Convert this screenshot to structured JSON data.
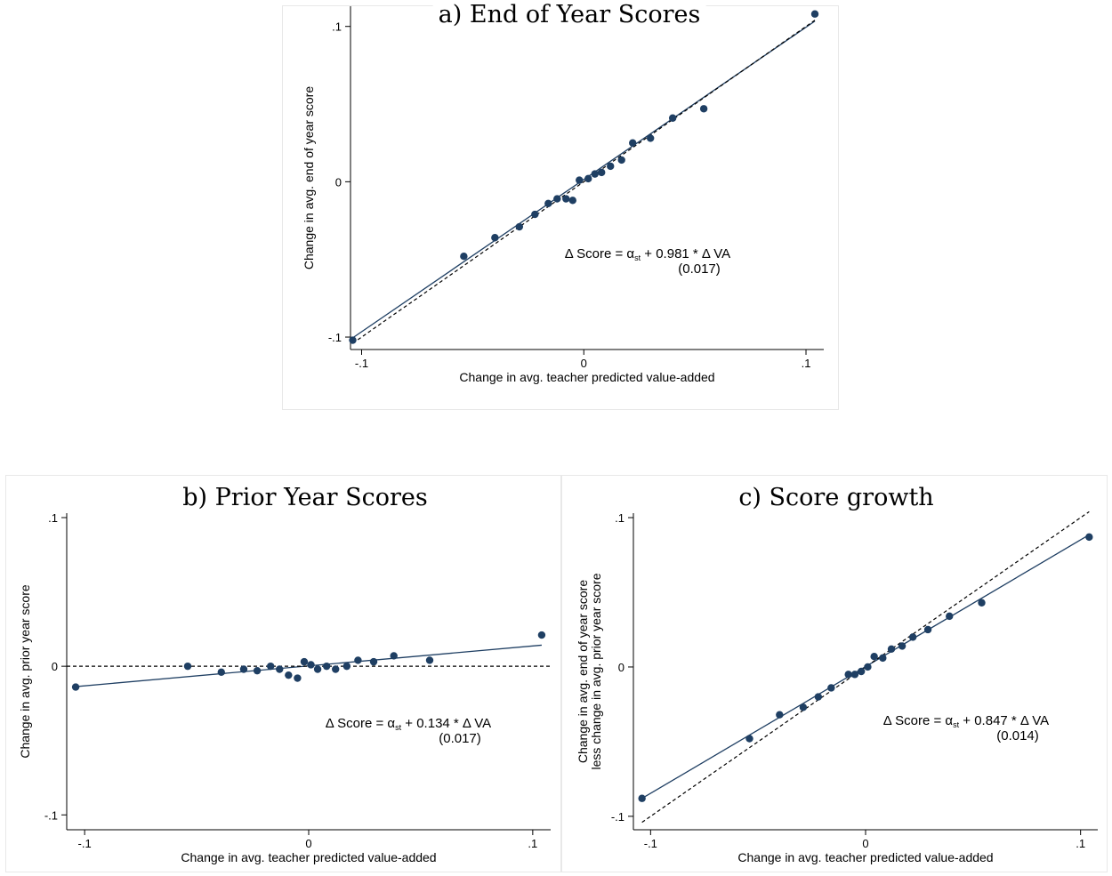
{
  "chart_data": [
    {
      "type": "scatter",
      "title": "a) End of Year Scores",
      "xlabel": "Change in avg. teacher predicted value-added",
      "ylabel": "Change in avg. end of year score",
      "xlim": [
        -0.105,
        0.108
      ],
      "ylim": [
        -0.108,
        0.113
      ],
      "x_ticks": [
        {
          "v": -0.1,
          "label": "-.1"
        },
        {
          "v": 0,
          "label": "0"
        },
        {
          "v": 0.1,
          "label": ".1"
        }
      ],
      "y_ticks": [
        {
          "v": -0.1,
          "label": "-.1"
        },
        {
          "v": 0,
          "label": "0"
        },
        {
          "v": 0.1,
          "label": ".1"
        }
      ],
      "grid": false,
      "series": [
        {
          "type": "scatter",
          "color": "#1f3f63",
          "points": [
            [
              -0.104,
              -0.102
            ],
            [
              -0.054,
              -0.048
            ],
            [
              -0.04,
              -0.036
            ],
            [
              -0.029,
              -0.029
            ],
            [
              -0.022,
              -0.021
            ],
            [
              -0.016,
              -0.014
            ],
            [
              -0.012,
              -0.011
            ],
            [
              -0.008,
              -0.011
            ],
            [
              -0.005,
              -0.012
            ],
            [
              -0.002,
              0.001
            ],
            [
              0.002,
              0.002
            ],
            [
              0.005,
              0.005
            ],
            [
              0.008,
              0.006
            ],
            [
              0.012,
              0.01
            ],
            [
              0.017,
              0.014
            ],
            [
              0.022,
              0.025
            ],
            [
              0.03,
              0.028
            ],
            [
              0.04,
              0.041
            ],
            [
              0.054,
              0.047
            ],
            [
              0.104,
              0.108
            ]
          ]
        },
        {
          "type": "fit",
          "color": "#1f3f63",
          "dashed": false,
          "x": [
            -0.104,
            0.104
          ],
          "y": [
            -0.1005,
            0.1034
          ]
        },
        {
          "type": "reference",
          "color": "#000000",
          "dashed": true,
          "x": [
            -0.104,
            0.104
          ],
          "y": [
            -0.104,
            0.104
          ]
        }
      ],
      "annotation": {
        "pre": "Δ Score = α",
        "sub": "st",
        "post": " +  0.981 * Δ VA",
        "se": "(0.017)"
      }
    },
    {
      "type": "scatter",
      "title": "b) Prior Year Scores",
      "xlabel": "Change in avg. teacher predicted value-added",
      "ylabel": "Change in avg. prior year score",
      "xlim": [
        -0.108,
        0.108
      ],
      "ylim": [
        -0.11,
        0.103
      ],
      "x_ticks": [
        {
          "v": -0.1,
          "label": "-.1"
        },
        {
          "v": 0,
          "label": "0"
        },
        {
          "v": 0.1,
          "label": ".1"
        }
      ],
      "y_ticks": [
        {
          "v": -0.1,
          "label": "-.1"
        },
        {
          "v": 0,
          "label": "0"
        },
        {
          "v": 0.1,
          "label": ".1"
        }
      ],
      "grid": false,
      "series": [
        {
          "type": "scatter",
          "color": "#1f3f63",
          "points": [
            [
              -0.104,
              -0.014
            ],
            [
              -0.054,
              0.0
            ],
            [
              -0.039,
              -0.004
            ],
            [
              -0.029,
              -0.002
            ],
            [
              -0.023,
              -0.003
            ],
            [
              -0.017,
              0.0
            ],
            [
              -0.013,
              -0.002
            ],
            [
              -0.009,
              -0.006
            ],
            [
              -0.005,
              -0.008
            ],
            [
              -0.002,
              0.003
            ],
            [
              0.001,
              0.001
            ],
            [
              0.004,
              -0.002
            ],
            [
              0.008,
              0.0
            ],
            [
              0.012,
              -0.002
            ],
            [
              0.017,
              0.0
            ],
            [
              0.022,
              0.004
            ],
            [
              0.029,
              0.003
            ],
            [
              0.038,
              0.007
            ],
            [
              0.054,
              0.004
            ],
            [
              0.104,
              0.021
            ]
          ]
        },
        {
          "type": "fit",
          "color": "#1f3f63",
          "dashed": false,
          "x": [
            -0.104,
            0.104
          ],
          "y": [
            -0.0137,
            0.0142
          ]
        },
        {
          "type": "reference",
          "color": "#000000",
          "dashed": true,
          "x": [
            -0.108,
            0.108
          ],
          "y": [
            0,
            0
          ]
        }
      ],
      "annotation": {
        "pre": "Δ Score = α",
        "sub": "st",
        "post": " +  0.134 * Δ VA",
        "se": "(0.017)"
      }
    },
    {
      "type": "scatter",
      "title": "c) Score growth",
      "xlabel": "Change in avg. teacher predicted value-added",
      "ylabel": [
        "Change in avg. end of year score",
        "less change in avg. prior year score"
      ],
      "xlim": [
        -0.108,
        0.108
      ],
      "ylim": [
        -0.109,
        0.103
      ],
      "x_ticks": [
        {
          "v": -0.1,
          "label": "-.1"
        },
        {
          "v": 0,
          "label": "0"
        },
        {
          "v": 0.1,
          "label": ".1"
        }
      ],
      "y_ticks": [
        {
          "v": -0.1,
          "label": "-.1"
        },
        {
          "v": 0,
          "label": "0"
        },
        {
          "v": 0.1,
          "label": ".1"
        }
      ],
      "grid": false,
      "series": [
        {
          "type": "scatter",
          "color": "#1f3f63",
          "points": [
            [
              -0.104,
              -0.088
            ],
            [
              -0.054,
              -0.048
            ],
            [
              -0.04,
              -0.032
            ],
            [
              -0.029,
              -0.027
            ],
            [
              -0.022,
              -0.02
            ],
            [
              -0.016,
              -0.014
            ],
            [
              -0.008,
              -0.005
            ],
            [
              -0.005,
              -0.005
            ],
            [
              -0.002,
              -0.003
            ],
            [
              0.001,
              0.0
            ],
            [
              0.004,
              0.007
            ],
            [
              0.008,
              0.006
            ],
            [
              0.012,
              0.012
            ],
            [
              0.017,
              0.014
            ],
            [
              0.022,
              0.02
            ],
            [
              0.029,
              0.025
            ],
            [
              0.039,
              0.034
            ],
            [
              0.054,
              0.043
            ],
            [
              0.104,
              0.087
            ]
          ]
        },
        {
          "type": "fit",
          "color": "#1f3f63",
          "dashed": false,
          "x": [
            -0.104,
            0.104
          ],
          "y": [
            -0.088,
            0.0885
          ]
        },
        {
          "type": "reference",
          "color": "#000000",
          "dashed": true,
          "x": [
            -0.104,
            0.104
          ],
          "y": [
            -0.104,
            0.104
          ]
        }
      ],
      "annotation": {
        "pre": "Δ Score = α",
        "sub": "st",
        "post": " +  0.847 * Δ VA",
        "se": "(0.014)"
      }
    }
  ]
}
